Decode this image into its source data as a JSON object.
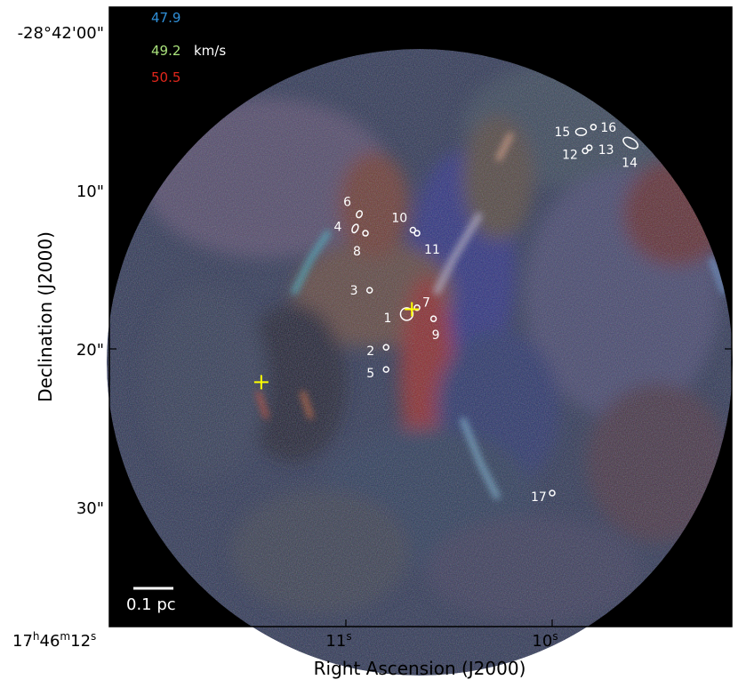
{
  "chart_data": {
    "type": "scatter",
    "xlabel": "Right Ascension (J2000)",
    "ylabel": "Declination (J2000)",
    "x_ticks": [
      {
        "h": "17",
        "m": "46",
        "s": "12",
        "label": "17h46m12s",
        "value_s": 12.0
      },
      {
        "label": "11s",
        "value_s": 11.0
      },
      {
        "label": "10s",
        "value_s": 10.0
      }
    ],
    "y_ticks": [
      {
        "label": "-28°42'00\"",
        "value_arcsec": 0
      },
      {
        "label": "10\"",
        "value_arcsec": 10
      },
      {
        "label": "20\"",
        "value_arcsec": 20
      },
      {
        "label": "30\"",
        "value_arcsec": 30
      }
    ],
    "xlim_s": [
      12.0,
      9.2
    ],
    "ylim_arcsec": [
      -2,
      37
    ],
    "legend": {
      "channels": [
        {
          "label": "47.9",
          "color": "#2f8fd8"
        },
        {
          "label": "49.2",
          "color": "#a8e07a"
        },
        {
          "label": "50.5",
          "color": "#e0261b"
        }
      ],
      "unit": "km/s",
      "placement": "top-left"
    },
    "scalebar": {
      "label": "0.1 pc"
    },
    "sources": [
      {
        "id": "1",
        "ra_s": 10.705,
        "dec_arcsec": 17.8
      },
      {
        "id": "2",
        "ra_s": 10.805,
        "dec_arcsec": 19.9
      },
      {
        "id": "3",
        "ra_s": 10.885,
        "dec_arcsec": 16.3
      },
      {
        "id": "4",
        "ra_s": 10.955,
        "dec_arcsec": 12.4
      },
      {
        "id": "5",
        "ra_s": 10.805,
        "dec_arcsec": 21.3
      },
      {
        "id": "6",
        "ra_s": 10.935,
        "dec_arcsec": 11.5
      },
      {
        "id": "7",
        "ra_s": 10.655,
        "dec_arcsec": 17.4
      },
      {
        "id": "8",
        "ra_s": 10.905,
        "dec_arcsec": 12.7
      },
      {
        "id": "9",
        "ra_s": 10.575,
        "dec_arcsec": 18.1
      },
      {
        "id": "10",
        "ra_s": 10.675,
        "dec_arcsec": 12.5
      },
      {
        "id": "11",
        "ra_s": 10.655,
        "dec_arcsec": 12.7
      },
      {
        "id": "12",
        "ra_s": 9.84,
        "dec_arcsec": 7.5
      },
      {
        "id": "13",
        "ra_s": 9.82,
        "dec_arcsec": 7.3
      },
      {
        "id": "14",
        "ra_s": 9.62,
        "dec_arcsec": 7.0
      },
      {
        "id": "15",
        "ra_s": 9.86,
        "dec_arcsec": 6.3
      },
      {
        "id": "16",
        "ra_s": 9.8,
        "dec_arcsec": 6.0
      },
      {
        "id": "17",
        "ra_s": 10.0,
        "dec_arcsec": 29.1
      }
    ],
    "markers": [
      {
        "name": "cross-1",
        "ra_s": 11.41,
        "dec_arcsec": 22.1,
        "color": "#ffff00"
      },
      {
        "name": "cross-2",
        "ra_s": 10.68,
        "dec_arcsec": 17.5,
        "color": "#ffff00"
      }
    ]
  }
}
